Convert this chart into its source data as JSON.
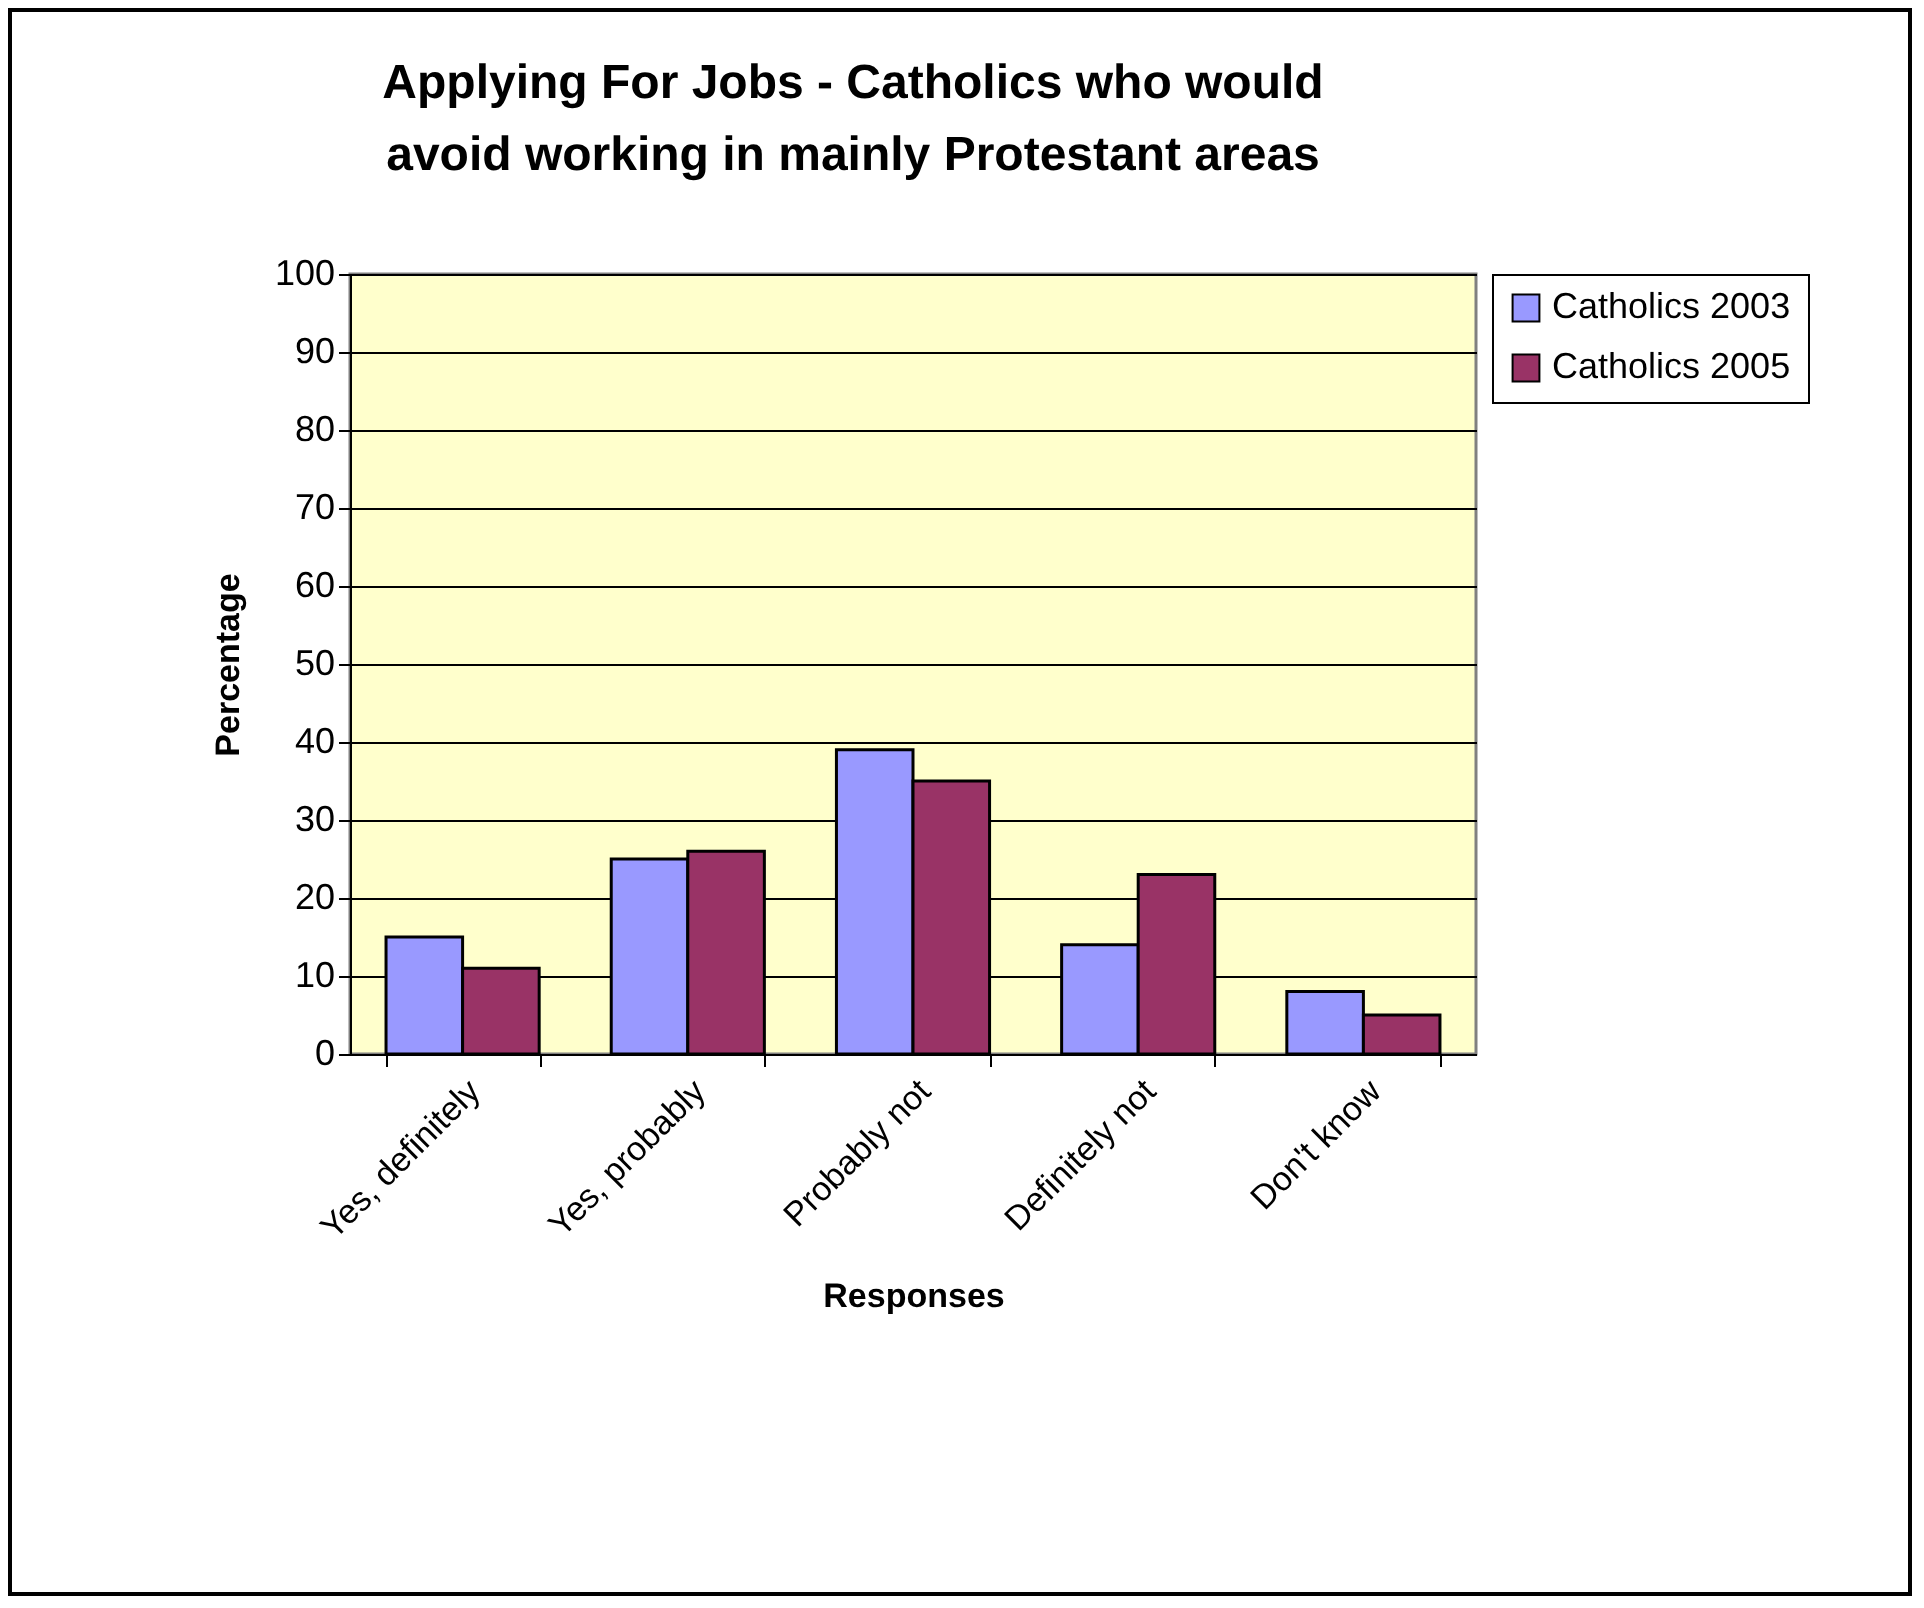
{
  "chart_data": {
    "type": "bar",
    "title": "Applying For Jobs - Catholics who would avoid working in mainly Protestant areas",
    "xlabel": "Responses",
    "ylabel": "Percentage",
    "categories": [
      "Yes, definitely",
      "Yes, probably",
      "Probably not",
      "Definitely not",
      "Don't know"
    ],
    "series": [
      {
        "name": "Catholics 2003",
        "color": "#9999ff",
        "values": [
          15,
          25,
          39,
          14,
          8
        ]
      },
      {
        "name": "Catholics 2005",
        "color": "#993366",
        "values": [
          11,
          26,
          35,
          23,
          5
        ]
      }
    ],
    "ylim": [
      0,
      100
    ],
    "yticks": [
      0,
      10,
      20,
      30,
      40,
      50,
      60,
      70,
      80,
      90,
      100
    ],
    "grid": "y",
    "legend": "right"
  }
}
